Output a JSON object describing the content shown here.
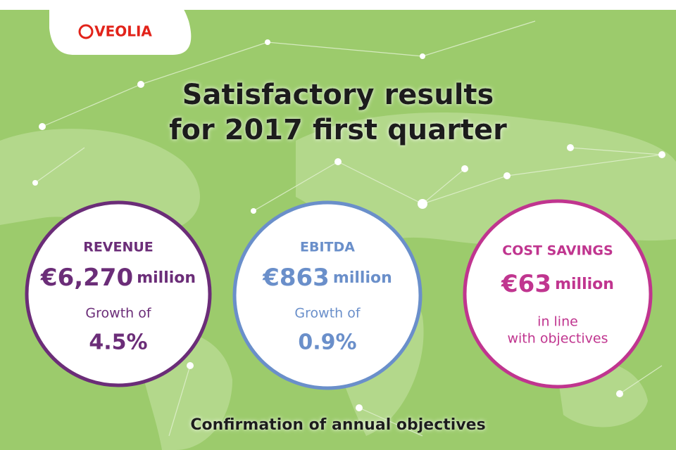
{
  "logo": "VEOLIA",
  "title": [
    "Satisfactory results",
    "for 2017 first quarter"
  ],
  "circles": [
    {
      "label": "REVENUE",
      "amount": "€6,270",
      "unit": "million",
      "note": [
        "Growth of"
      ],
      "figure": "4.5%"
    },
    {
      "label": "EBITDA",
      "amount": "€863",
      "unit": "million",
      "note": [
        "Growth of"
      ],
      "figure": "0.9%"
    },
    {
      "label": "COST SAVINGS",
      "amount": "€63",
      "unit": "million",
      "note": [
        "in line",
        "with objectives"
      ]
    }
  ],
  "footer": "Confirmation of annual objectives"
}
